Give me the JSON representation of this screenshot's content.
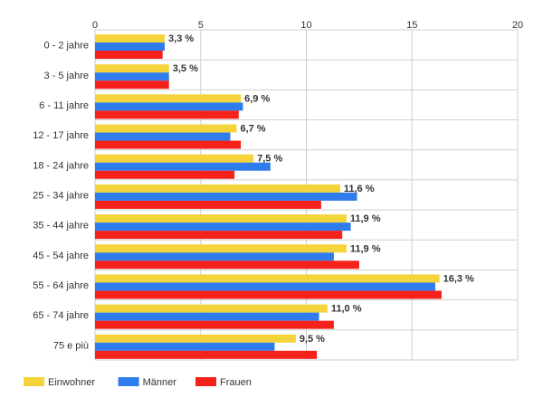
{
  "chart_data": {
    "type": "bar",
    "orientation": "horizontal",
    "categories": [
      "0 - 2 jahre",
      "3 - 5 jahre",
      "6 - 11 jahre",
      "12 - 17 jahre",
      "18 - 24 jahre",
      "25 - 34 jahre",
      "35 - 44 jahre",
      "45 - 54 jahre",
      "55 - 64 jahre",
      "65 - 74 jahre",
      "75 e più"
    ],
    "series": [
      {
        "name": "Einwohner",
        "color": "#f5d33a",
        "values": [
          3.3,
          3.5,
          6.9,
          6.7,
          7.5,
          11.6,
          11.9,
          11.9,
          16.3,
          11.0,
          9.5
        ],
        "labels": [
          "3,3 %",
          "3,5 %",
          "6,9 %",
          "6,7 %",
          "7,5 %",
          "11,6 %",
          "11,9 %",
          "11,9 %",
          "16,3 %",
          "11,0 %",
          "9,5 %"
        ]
      },
      {
        "name": "Männer",
        "color": "#2f7ded",
        "values": [
          3.3,
          3.5,
          7.0,
          6.4,
          8.3,
          12.4,
          12.1,
          11.3,
          16.1,
          10.6,
          8.5
        ]
      },
      {
        "name": "Frauen",
        "color": "#f5211b",
        "values": [
          3.2,
          3.5,
          6.8,
          6.9,
          6.6,
          10.7,
          11.7,
          12.5,
          16.4,
          11.3,
          10.5
        ]
      }
    ],
    "xlim": [
      0,
      20
    ],
    "xticks": [
      "0",
      "5",
      "10",
      "15",
      "20"
    ],
    "grid": true,
    "legend_position": "bottom-left"
  }
}
